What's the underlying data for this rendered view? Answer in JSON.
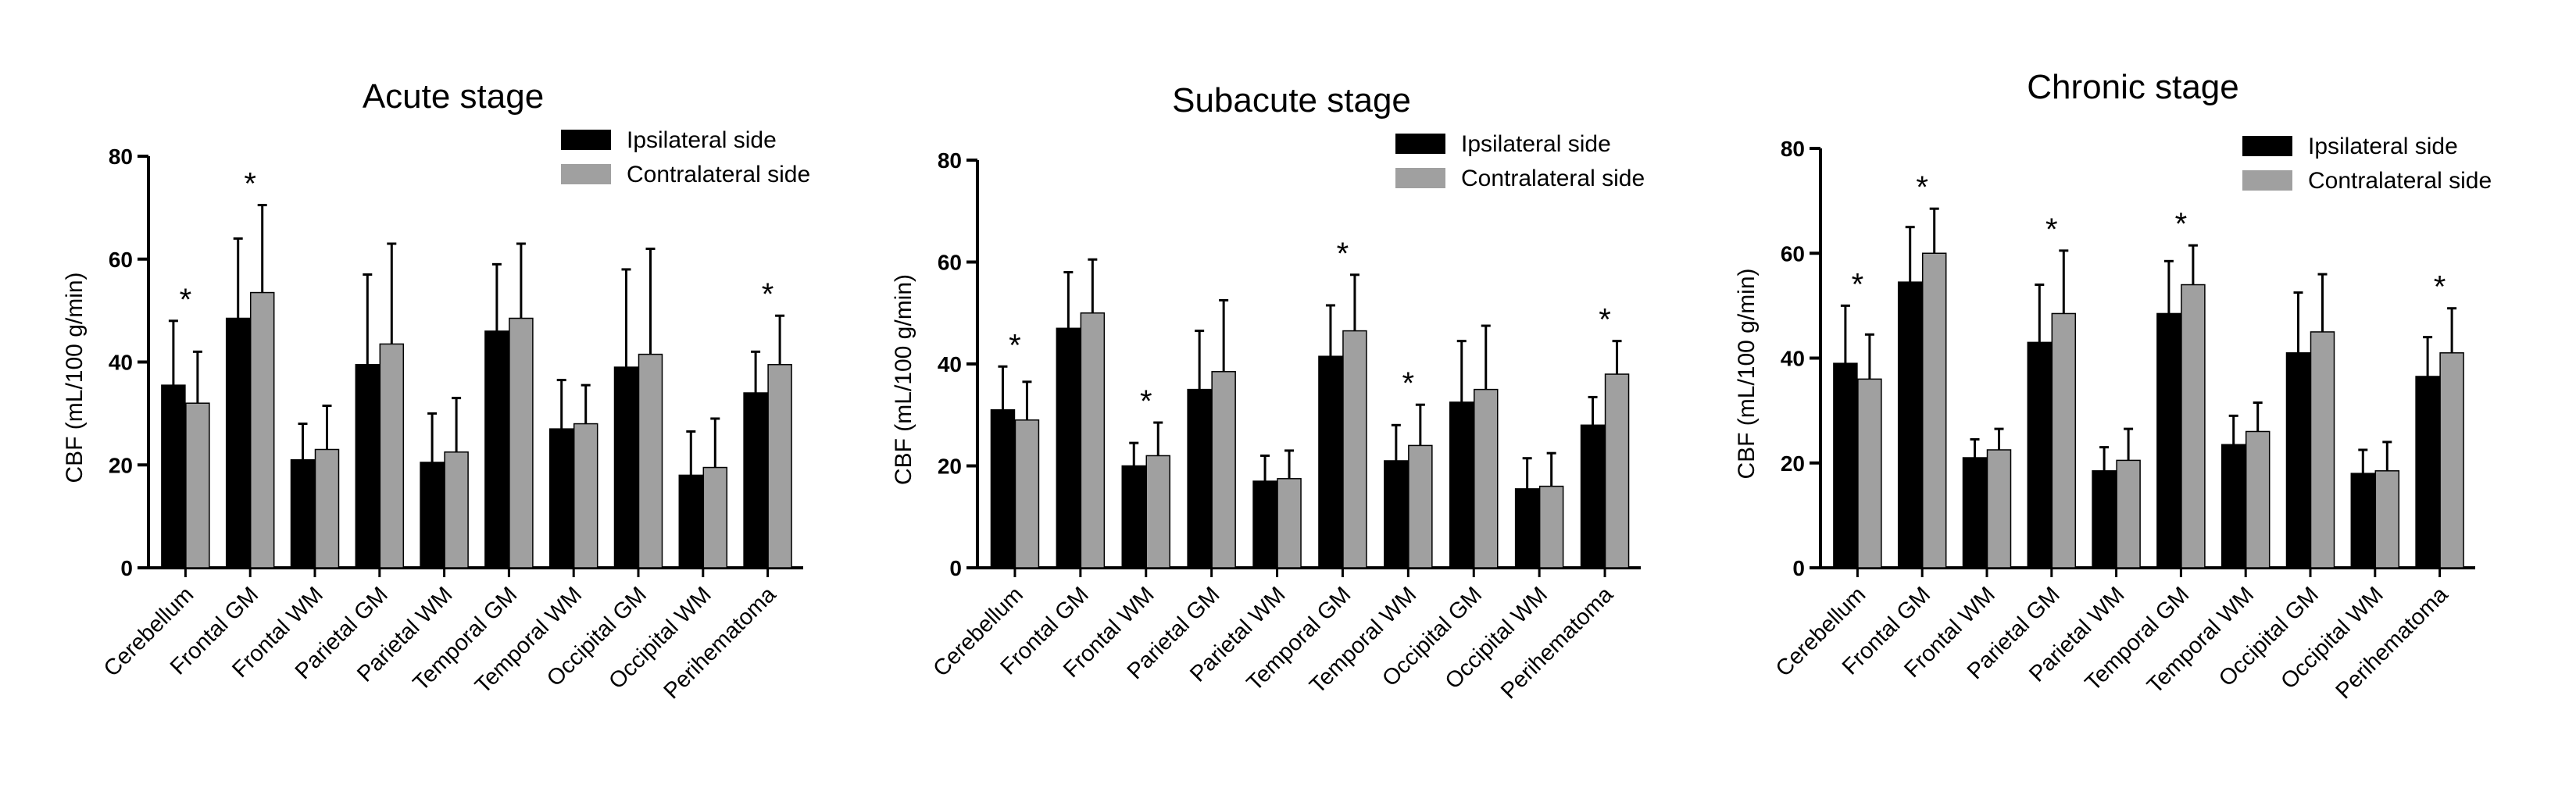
{
  "chart_data": [
    {
      "type": "bar",
      "title": "Acute stage",
      "ylabel": "CBF (mL/100 g/min)",
      "ylim": [
        0,
        80
      ],
      "yticks": [
        0,
        20,
        40,
        60,
        80
      ],
      "categories": [
        "Cerebellum",
        "Frontal GM",
        "Frontal WM",
        "Parietal GM",
        "Parietal WM",
        "Temporal GM",
        "Temporal WM",
        "Occipital GM",
        "Occipital WM",
        "Perihematoma"
      ],
      "series": [
        {
          "name": "Ipsilateral side",
          "color": "#000000",
          "values": [
            35.5,
            48.5,
            21,
            39.5,
            20.5,
            46,
            27,
            39,
            18,
            34
          ],
          "errors": [
            12.5,
            15.5,
            7,
            17.5,
            9.5,
            13,
            9.5,
            19,
            8.5,
            8
          ]
        },
        {
          "name": "Contralateral side",
          "color": "#a0a0a0",
          "values": [
            32,
            53.5,
            23,
            43.5,
            22.5,
            48.5,
            28,
            41.5,
            19.5,
            39.5
          ],
          "errors": [
            10,
            17,
            8.5,
            19.5,
            10.5,
            14.5,
            7.5,
            20.5,
            9.5,
            9.5
          ]
        }
      ],
      "significance": [
        "*",
        "*",
        "",
        "",
        "",
        "",
        "",
        "",
        "",
        "*"
      ],
      "legend_position": "top-right"
    },
    {
      "type": "bar",
      "title": "Subacute stage",
      "ylabel": "CBF (mL/100 g/min)",
      "ylim": [
        0,
        80
      ],
      "yticks": [
        0,
        20,
        40,
        60,
        80
      ],
      "categories": [
        "Cerebellum",
        "Frontal GM",
        "Frontal WM",
        "Parietal GM",
        "Parietal WM",
        "Temporal GM",
        "Temporal WM",
        "Occipital GM",
        "Occipital WM",
        "Perihematoma"
      ],
      "series": [
        {
          "name": "Ipsilateral side",
          "color": "#000000",
          "values": [
            31,
            47,
            20,
            35,
            17,
            41.5,
            21,
            32.5,
            15.5,
            28
          ],
          "errors": [
            8.5,
            11,
            4.5,
            11.5,
            5,
            10,
            7,
            12,
            6,
            5.5
          ]
        },
        {
          "name": "Contralateral side",
          "color": "#a0a0a0",
          "values": [
            29,
            50,
            22,
            38.5,
            17.5,
            46.5,
            24,
            35,
            16,
            38
          ],
          "errors": [
            7.5,
            10.5,
            6.5,
            14,
            5.5,
            11,
            8,
            12.5,
            6.5,
            6.5
          ]
        }
      ],
      "significance": [
        "*",
        "",
        "*",
        "",
        "",
        "*",
        "*",
        "",
        "",
        "*"
      ],
      "legend_position": "top-right"
    },
    {
      "type": "bar",
      "title": "Chronic stage",
      "ylabel": "CBF (mL/100 g/min)",
      "ylim": [
        0,
        80
      ],
      "yticks": [
        0,
        20,
        40,
        60,
        80
      ],
      "categories": [
        "Cerebellum",
        "Frontal GM",
        "Frontal WM",
        "Parietal GM",
        "Parietal WM",
        "Temporal GM",
        "Temporal WM",
        "Occipital GM",
        "Occipital WM",
        "Perihematoma"
      ],
      "series": [
        {
          "name": "Ipsilateral side",
          "color": "#000000",
          "values": [
            39,
            54.5,
            21,
            43,
            18.5,
            48.5,
            23.5,
            41,
            18,
            36.5
          ],
          "errors": [
            11,
            10.5,
            3.5,
            11,
            4.5,
            10,
            5.5,
            11.5,
            4.5,
            7.5
          ]
        },
        {
          "name": "Contralateral side",
          "color": "#a0a0a0",
          "values": [
            36,
            60,
            22.5,
            48.5,
            20.5,
            54,
            26,
            45,
            18.5,
            41
          ],
          "errors": [
            8.5,
            8.5,
            4,
            12,
            6,
            7.5,
            5.5,
            11,
            5.5,
            8.5
          ]
        }
      ],
      "significance": [
        "*",
        "*",
        "",
        "*",
        "",
        "*",
        "",
        "",
        "",
        "*"
      ],
      "legend_position": "top-right"
    }
  ]
}
